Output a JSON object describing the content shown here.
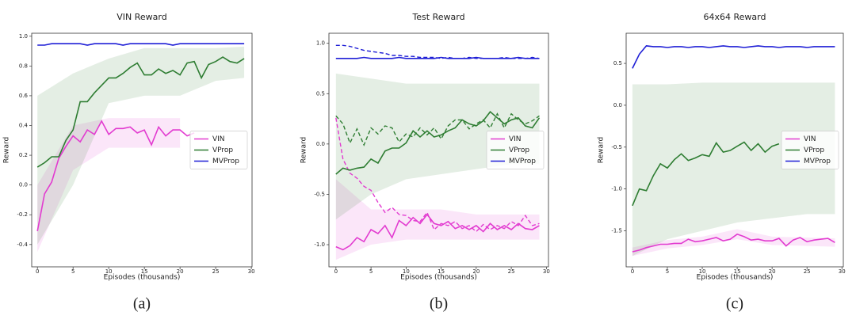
{
  "chart_data": [
    {
      "type": "line",
      "title": "VIN Reward",
      "caption": "(a)",
      "xlabel": "Episodes (thousands)",
      "ylabel": "Reward",
      "legend": "center right",
      "x": [
        0,
        1,
        2,
        3,
        4,
        5,
        6,
        7,
        8,
        9,
        10,
        11,
        12,
        13,
        14,
        15,
        16,
        17,
        18,
        19,
        20,
        21,
        22,
        23,
        24,
        25,
        26,
        27,
        28,
        29
      ],
      "xlim": [
        -0.8,
        30.1
      ],
      "xticks": [
        0,
        5,
        10,
        15,
        20,
        25,
        30
      ],
      "ylim": [
        -0.55,
        1.02
      ],
      "yticks": [
        -0.4,
        -0.2,
        {
          "value": 0,
          "label": "0.0"
        },
        0.2,
        0.4,
        0.6,
        0.8,
        {
          "value": 1,
          "label": "1.0"
        }
      ],
      "band_x": [
        0,
        5,
        10,
        15,
        20,
        25,
        29
      ],
      "series": [
        {
          "name": "VIN",
          "color": "#e23bd0",
          "values": [
            -0.31,
            -0.06,
            0.02,
            0.18,
            0.26,
            0.33,
            0.29,
            0.37,
            0.34,
            0.43,
            0.34,
            0.38,
            0.38,
            0.39,
            0.35,
            0.37,
            0.27,
            0.39,
            0.33,
            0.37,
            0.37,
            0.33,
            0.35,
            null,
            null,
            null,
            null,
            null,
            null,
            null
          ],
          "band_lower": [
            -0.45,
            0.1,
            0.25,
            0.25,
            0.25,
            null,
            null
          ],
          "band_upper": [
            0.0,
            0.4,
            0.45,
            0.45,
            0.45,
            null,
            null
          ]
        },
        {
          "name": "VProp",
          "color": "#2e7d32",
          "values": [
            0.12,
            0.15,
            0.19,
            0.19,
            0.3,
            0.37,
            0.56,
            0.56,
            0.62,
            0.67,
            0.72,
            0.72,
            0.75,
            0.79,
            0.82,
            0.74,
            0.74,
            0.78,
            0.75,
            0.77,
            0.74,
            0.82,
            0.83,
            0.72,
            0.81,
            0.83,
            0.86,
            0.83,
            0.82,
            0.85
          ],
          "band_lower": [
            -0.4,
            0.0,
            0.55,
            0.6,
            0.6,
            0.7,
            0.72
          ],
          "band_upper": [
            0.6,
            0.75,
            0.85,
            0.92,
            0.92,
            0.92,
            0.93
          ]
        },
        {
          "name": "MVProp",
          "color": "#1f1fd6",
          "values": [
            0.94,
            0.94,
            0.95,
            0.95,
            0.95,
            0.95,
            0.95,
            0.94,
            0.95,
            0.95,
            0.95,
            0.95,
            0.94,
            0.95,
            0.95,
            0.95,
            0.95,
            0.95,
            0.95,
            0.94,
            0.95,
            0.95,
            0.95,
            0.95,
            0.95,
            0.95,
            0.95,
            0.95,
            0.95,
            0.95
          ]
        }
      ]
    },
    {
      "type": "line",
      "title": "Test Reward",
      "caption": "(b)",
      "xlabel": "Episodes (thousands)",
      "ylabel": "Reward",
      "legend": "center right",
      "x": [
        0,
        1,
        2,
        3,
        4,
        5,
        6,
        7,
        8,
        9,
        10,
        11,
        12,
        13,
        14,
        15,
        16,
        17,
        18,
        19,
        20,
        21,
        22,
        23,
        24,
        25,
        26,
        27,
        28,
        29
      ],
      "xlim": [
        -1.0,
        30.3
      ],
      "xticks": [
        0,
        5,
        10,
        15,
        20,
        25,
        30
      ],
      "ylim": [
        -1.22,
        1.1
      ],
      "yticks": [
        {
          "value": -1,
          "label": "-1.0"
        },
        -0.5,
        {
          "value": 0,
          "label": "0.0"
        },
        0.5,
        {
          "value": 1,
          "label": "1.0"
        }
      ],
      "band_x": [
        0,
        5,
        10,
        15,
        20,
        25,
        29
      ],
      "series": [
        {
          "name": "VIN",
          "color": "#e23bd0",
          "values": [
            -1.02,
            -1.05,
            -1.01,
            -0.93,
            -0.97,
            -0.85,
            -0.89,
            -0.81,
            -0.93,
            -0.76,
            -0.81,
            -0.73,
            -0.79,
            -0.7,
            -0.79,
            -0.81,
            -0.77,
            -0.84,
            -0.81,
            -0.85,
            -0.81,
            -0.87,
            -0.79,
            -0.85,
            -0.81,
            -0.85,
            -0.79,
            -0.84,
            -0.85,
            -0.81
          ],
          "dashed_values": [
            0.26,
            -0.15,
            -0.29,
            -0.34,
            -0.42,
            -0.46,
            -0.58,
            -0.68,
            -0.63,
            -0.7,
            -0.71,
            -0.76,
            -0.77,
            -0.68,
            -0.85,
            -0.79,
            -0.81,
            -0.77,
            -0.84,
            -0.81,
            -0.87,
            -0.8,
            -0.85,
            -0.81,
            -0.84,
            -0.77,
            -0.81,
            -0.71,
            -0.81,
            -0.79
          ],
          "band_lower": [
            -1.15,
            -1.0,
            -0.95,
            -0.95,
            -0.95,
            -0.95,
            -0.95
          ],
          "band_upper": [
            -0.35,
            -0.65,
            -0.65,
            -0.65,
            -0.7,
            -0.7,
            -0.7
          ]
        },
        {
          "name": "VProp",
          "color": "#2e7d32",
          "values": [
            -0.3,
            -0.24,
            -0.26,
            -0.24,
            -0.23,
            -0.15,
            -0.19,
            -0.07,
            -0.04,
            -0.04,
            0.01,
            0.13,
            0.07,
            0.13,
            0.07,
            0.09,
            0.13,
            0.16,
            0.24,
            0.2,
            0.18,
            0.23,
            0.32,
            0.26,
            0.2,
            0.24,
            0.26,
            0.18,
            0.16,
            0.26
          ],
          "dashed_values": [
            0.28,
            0.2,
            0.01,
            0.15,
            -0.01,
            0.16,
            0.1,
            0.18,
            0.16,
            0.02,
            0.1,
            0.07,
            0.16,
            0.09,
            0.16,
            0.05,
            0.18,
            0.24,
            0.24,
            0.15,
            0.2,
            0.24,
            0.16,
            0.3,
            0.16,
            0.3,
            0.24,
            0.2,
            0.23,
            0.28
          ],
          "band_lower": [
            -0.75,
            -0.5,
            -0.35,
            -0.3,
            -0.25,
            -0.2,
            -0.2
          ],
          "band_upper": [
            0.7,
            0.65,
            0.6,
            0.6,
            0.6,
            0.6,
            0.6
          ]
        },
        {
          "name": "MVProp",
          "color": "#1f1fd6",
          "values": [
            0.85,
            0.85,
            0.85,
            0.85,
            0.86,
            0.85,
            0.85,
            0.85,
            0.85,
            0.86,
            0.85,
            0.85,
            0.85,
            0.85,
            0.85,
            0.86,
            0.85,
            0.85,
            0.85,
            0.85,
            0.86,
            0.85,
            0.85,
            0.85,
            0.85,
            0.85,
            0.86,
            0.85,
            0.85,
            0.85
          ],
          "dashed_values": [
            0.98,
            0.98,
            0.97,
            0.95,
            0.93,
            0.92,
            0.91,
            0.9,
            0.88,
            0.88,
            0.87,
            0.87,
            0.86,
            0.86,
            0.86,
            0.85,
            0.86,
            0.85,
            0.85,
            0.86,
            0.85,
            0.85,
            0.85,
            0.85,
            0.86,
            0.85,
            0.85,
            0.85,
            0.86,
            0.85
          ]
        }
      ]
    },
    {
      "type": "line",
      "title": "64x64 Reward",
      "caption": "(c)",
      "xlabel": "Episodes (thousands)",
      "ylabel": "Reward",
      "legend": "center right",
      "x": [
        0,
        1,
        2,
        3,
        4,
        5,
        6,
        7,
        8,
        9,
        10,
        11,
        12,
        13,
        14,
        15,
        16,
        17,
        18,
        19,
        20,
        21,
        22,
        23,
        24,
        25,
        26,
        27,
        28,
        29
      ],
      "xlim": [
        -0.9,
        30.2
      ],
      "xticks": [
        0,
        5,
        10,
        15,
        20,
        25,
        30
      ],
      "ylim": [
        -1.93,
        0.86
      ],
      "yticks": [
        -1.5,
        {
          "value": -1,
          "label": "-1.0"
        },
        -0.5,
        {
          "value": 0,
          "label": "0.0"
        },
        0.5
      ],
      "band_x": [
        0,
        5,
        10,
        15,
        20,
        25,
        29
      ],
      "series": [
        {
          "name": "VIN",
          "color": "#e23bd0",
          "values": [
            -1.75,
            -1.73,
            -1.7,
            -1.68,
            -1.66,
            -1.66,
            -1.65,
            -1.65,
            -1.6,
            -1.63,
            -1.62,
            -1.6,
            -1.58,
            -1.62,
            -1.6,
            -1.54,
            -1.57,
            -1.61,
            -1.6,
            -1.62,
            -1.62,
            -1.59,
            -1.68,
            -1.61,
            -1.58,
            -1.63,
            -1.61,
            -1.6,
            -1.59,
            -1.64
          ],
          "band_lower": [
            -1.8,
            -1.71,
            -1.67,
            -1.6,
            -1.67,
            -1.68,
            -1.69
          ],
          "band_upper": [
            -1.7,
            -1.61,
            -1.57,
            -1.48,
            -1.57,
            -1.58,
            -1.59
          ]
        },
        {
          "name": "VProp",
          "color": "#2e7d32",
          "values": [
            -1.2,
            -1.0,
            -1.02,
            -0.84,
            -0.7,
            -0.75,
            -0.65,
            -0.58,
            -0.66,
            -0.63,
            -0.59,
            -0.61,
            -0.45,
            -0.56,
            -0.54,
            -0.49,
            -0.44,
            -0.54,
            -0.46,
            -0.56,
            -0.49,
            -0.46,
            null,
            null,
            null,
            null,
            null,
            null,
            null,
            null
          ],
          "band_lower": [
            -1.8,
            -1.6,
            -1.5,
            -1.4,
            -1.35,
            -1.3,
            -1.3
          ],
          "band_upper": [
            0.25,
            0.25,
            0.27,
            0.27,
            0.27,
            0.27,
            0.27
          ]
        },
        {
          "name": "MVProp",
          "color": "#1f1fd6",
          "values": [
            0.44,
            0.61,
            0.71,
            0.7,
            0.7,
            0.69,
            0.7,
            0.7,
            0.69,
            0.7,
            0.7,
            0.69,
            0.7,
            0.71,
            0.7,
            0.7,
            0.69,
            0.7,
            0.71,
            0.7,
            0.7,
            0.69,
            0.7,
            0.7,
            0.7,
            0.69,
            0.7,
            0.7,
            0.7,
            0.7
          ]
        }
      ]
    }
  ]
}
